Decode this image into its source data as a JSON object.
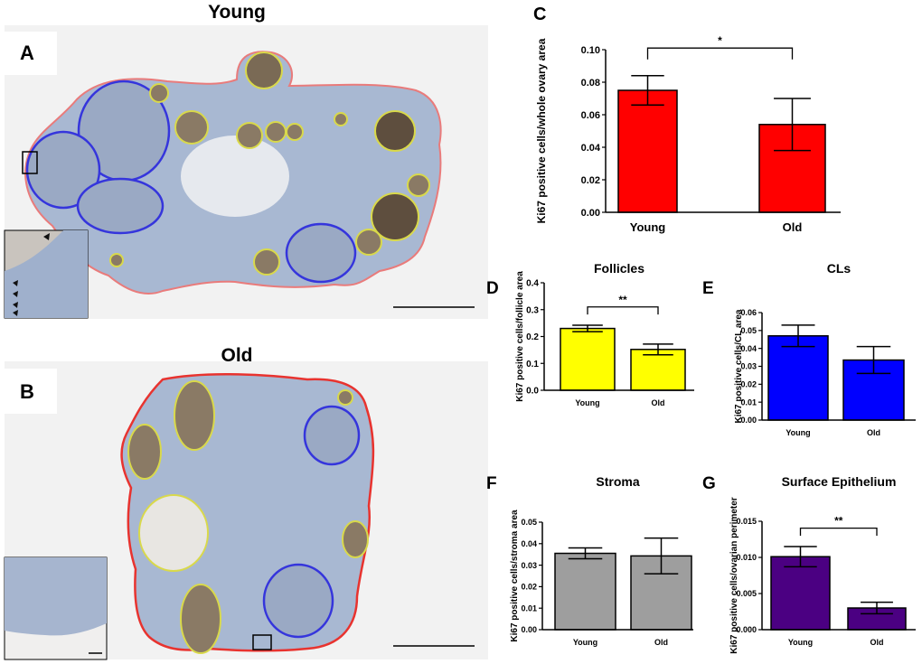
{
  "panels": {
    "A": {
      "letter": "A",
      "title": "Young"
    },
    "B": {
      "letter": "B",
      "title": "Old"
    }
  },
  "colors": {
    "ovary_outline": "#e8332f",
    "cl_outline": "#2e2ee0",
    "follicle_outline": "#d9d94a",
    "tissue": "#a8b8d2",
    "background_panel": "#f2f2f2"
  },
  "chart_data": [
    {
      "panel": "C",
      "type": "bar",
      "title": "",
      "categories": [
        "Young",
        "Old"
      ],
      "values": [
        0.075,
        0.054
      ],
      "errors": [
        0.009,
        0.016
      ],
      "color": "#ff0000",
      "ylabel": "Ki67 positive cells/whole ovary area",
      "ylim": [
        0,
        0.1
      ],
      "yticks": [
        "0.00",
        "0.02",
        "0.04",
        "0.06",
        "0.08",
        "0.10"
      ],
      "significance": "*"
    },
    {
      "panel": "D",
      "type": "bar",
      "title": "Follicles",
      "categories": [
        "Young",
        "Old"
      ],
      "values": [
        0.23,
        0.152
      ],
      "errors": [
        0.012,
        0.02
      ],
      "color": "#ffff00",
      "ylabel": "Ki67 positive cells/follicle area",
      "ylim": [
        0,
        0.4
      ],
      "yticks": [
        "0.0",
        "0.1",
        "0.2",
        "0.3",
        "0.4"
      ],
      "significance": "**"
    },
    {
      "panel": "E",
      "type": "bar",
      "title": "CLs",
      "categories": [
        "Young",
        "Old"
      ],
      "values": [
        0.047,
        0.0335
      ],
      "errors": [
        0.006,
        0.0075
      ],
      "color": "#0000ff",
      "ylabel": "Ki67 positive cells/CL area",
      "ylim": [
        0,
        0.06
      ],
      "yticks": [
        "0.00",
        "0.01",
        "0.02",
        "0.03",
        "0.04",
        "0.05",
        "0.06"
      ],
      "significance": ""
    },
    {
      "panel": "F",
      "type": "bar",
      "title": "Stroma",
      "categories": [
        "Young",
        "Old"
      ],
      "values": [
        0.0355,
        0.0343
      ],
      "errors": [
        0.0025,
        0.0083
      ],
      "color": "#9e9e9e",
      "ylabel": "Ki67 positive cells/stroma area",
      "ylim": [
        0,
        0.05
      ],
      "yticks": [
        "0.00",
        "0.01",
        "0.02",
        "0.03",
        "0.04",
        "0.05"
      ],
      "significance": ""
    },
    {
      "panel": "G",
      "type": "bar",
      "title": "Surface Epithelium",
      "categories": [
        "Young",
        "Old"
      ],
      "values": [
        0.0101,
        0.003
      ],
      "errors": [
        0.0014,
        0.0008
      ],
      "color": "#4b0082",
      "ylabel": "Ki67 positive cells/ovarian perimeter",
      "ylim": [
        0,
        0.015
      ],
      "yticks": [
        "0.000",
        "0.005",
        "0.010",
        "0.015"
      ],
      "significance": "**"
    }
  ]
}
